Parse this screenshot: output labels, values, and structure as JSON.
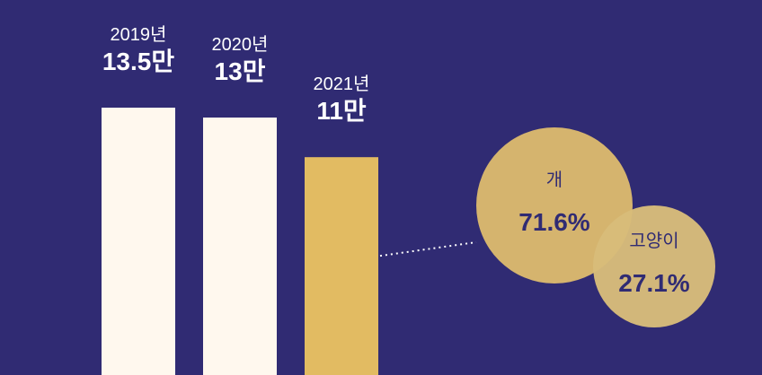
{
  "chart_data": {
    "type": "bar",
    "categories": [
      "2019년",
      "2020년",
      "2021년"
    ],
    "values": [
      13.5,
      13,
      11
    ],
    "value_labels": [
      "13.5만",
      "13만",
      "11만"
    ],
    "unit": "만",
    "highlight_index": 2,
    "colors": {
      "background": "#302b73",
      "bar": "#fff8ee",
      "bar_highlight": "#e2bb62",
      "bubble_primary": "#dbb96d",
      "bubble_secondary": "#d8bc7a",
      "bubble_text": "#302b73",
      "label": "#ffffff"
    },
    "breakdown": {
      "type": "pie",
      "of_category": "2021년",
      "slices": [
        {
          "name": "개",
          "value": 71.6,
          "label": "71.6%"
        },
        {
          "name": "고양이",
          "value": 27.1,
          "label": "27.1%"
        }
      ]
    }
  }
}
